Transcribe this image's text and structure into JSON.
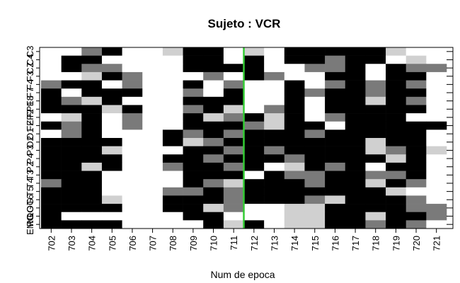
{
  "chart_data": {
    "type": "heatmap",
    "title": "Sujeto : VCR",
    "xlabel": "Num de epoca",
    "ylabel": "",
    "x": [
      "702",
      "703",
      "704",
      "705",
      "706",
      "707",
      "708",
      "709",
      "710",
      "711",
      "712",
      "713",
      "714",
      "715",
      "716",
      "717",
      "718",
      "719",
      "720",
      "721"
    ],
    "y": [
      "C3",
      "C4",
      "CZ",
      "F3",
      "F4",
      "F7",
      "F8",
      "FP1",
      "FP2",
      "FZ",
      "O1",
      "O2",
      "P3",
      "P4",
      "PZ",
      "T3",
      "T4",
      "T5",
      "T6",
      "LOG",
      "ROG",
      "EMG"
    ],
    "value_scale": "0 = white, 1 = light gray, 2 = gray, 3 = black",
    "values": [
      [
        0,
        0,
        2,
        3,
        0,
        0,
        1,
        3,
        3,
        0,
        1,
        0,
        3,
        3,
        3,
        3,
        3,
        1,
        0,
        0
      ],
      [
        0,
        3,
        3,
        0,
        0,
        0,
        0,
        3,
        3,
        0,
        3,
        0,
        3,
        3,
        2,
        3,
        3,
        0,
        1,
        0
      ],
      [
        0,
        3,
        2,
        2,
        0,
        0,
        0,
        3,
        3,
        3,
        3,
        0,
        0,
        2,
        2,
        3,
        0,
        3,
        2,
        2
      ],
      [
        0,
        0,
        1,
        3,
        2,
        0,
        0,
        0,
        2,
        0,
        3,
        2,
        0,
        0,
        3,
        3,
        0,
        3,
        3,
        0
      ],
      [
        2,
        3,
        3,
        0,
        2,
        0,
        0,
        3,
        0,
        2,
        0,
        0,
        3,
        0,
        2,
        3,
        2,
        3,
        2,
        0
      ],
      [
        3,
        0,
        3,
        3,
        3,
        0,
        0,
        2,
        0,
        3,
        0,
        0,
        3,
        2,
        3,
        3,
        2,
        3,
        3,
        0
      ],
      [
        3,
        2,
        1,
        3,
        0,
        0,
        0,
        3,
        3,
        3,
        0,
        0,
        3,
        0,
        3,
        3,
        1,
        3,
        2,
        0
      ],
      [
        3,
        3,
        3,
        1,
        3,
        0,
        0,
        2,
        3,
        1,
        0,
        2,
        3,
        0,
        3,
        3,
        3,
        3,
        3,
        0
      ],
      [
        0,
        1,
        3,
        0,
        2,
        0,
        0,
        3,
        1,
        2,
        3,
        1,
        3,
        0,
        2,
        3,
        3,
        3,
        0,
        0
      ],
      [
        3,
        2,
        3,
        0,
        2,
        0,
        0,
        3,
        3,
        3,
        2,
        1,
        3,
        3,
        0,
        3,
        3,
        3,
        3,
        3
      ],
      [
        0,
        2,
        3,
        0,
        0,
        0,
        3,
        2,
        3,
        2,
        3,
        3,
        3,
        2,
        3,
        3,
        3,
        3,
        3,
        0
      ],
      [
        3,
        3,
        3,
        3,
        0,
        0,
        3,
        1,
        2,
        3,
        3,
        3,
        3,
        3,
        3,
        3,
        1,
        3,
        3,
        0
      ],
      [
        3,
        3,
        3,
        1,
        0,
        0,
        0,
        3,
        3,
        2,
        3,
        2,
        3,
        3,
        3,
        3,
        1,
        2,
        3,
        1
      ],
      [
        3,
        3,
        3,
        3,
        0,
        0,
        3,
        3,
        2,
        3,
        3,
        3,
        2,
        3,
        3,
        3,
        3,
        1,
        3,
        0
      ],
      [
        3,
        3,
        1,
        3,
        0,
        0,
        2,
        3,
        3,
        2,
        3,
        0,
        1,
        3,
        2,
        3,
        0,
        3,
        3,
        0
      ],
      [
        3,
        3,
        3,
        0,
        0,
        0,
        0,
        3,
        3,
        3,
        0,
        3,
        2,
        2,
        3,
        3,
        2,
        2,
        3,
        0
      ],
      [
        2,
        3,
        3,
        0,
        0,
        0,
        0,
        3,
        2,
        1,
        3,
        3,
        3,
        2,
        3,
        3,
        1,
        3,
        2,
        0
      ],
      [
        3,
        3,
        3,
        0,
        0,
        0,
        2,
        2,
        3,
        2,
        3,
        3,
        3,
        3,
        3,
        3,
        3,
        1,
        0,
        0
      ],
      [
        3,
        3,
        3,
        1,
        0,
        0,
        3,
        3,
        3,
        2,
        3,
        3,
        3,
        2,
        1,
        3,
        3,
        3,
        2,
        0
      ],
      [
        3,
        3,
        3,
        3,
        0,
        0,
        3,
        3,
        1,
        2,
        0,
        0,
        1,
        1,
        3,
        3,
        3,
        3,
        2,
        2
      ],
      [
        3,
        0,
        0,
        0,
        0,
        0,
        0,
        3,
        3,
        0,
        0,
        0,
        1,
        1,
        3,
        3,
        1,
        3,
        3,
        2
      ],
      [
        3,
        3,
        3,
        3,
        0,
        0,
        0,
        0,
        3,
        1,
        3,
        0,
        1,
        1,
        3,
        3,
        2,
        3,
        2,
        0
      ]
    ],
    "marker": {
      "x": "711",
      "color": "#33cc33",
      "label": ""
    }
  }
}
